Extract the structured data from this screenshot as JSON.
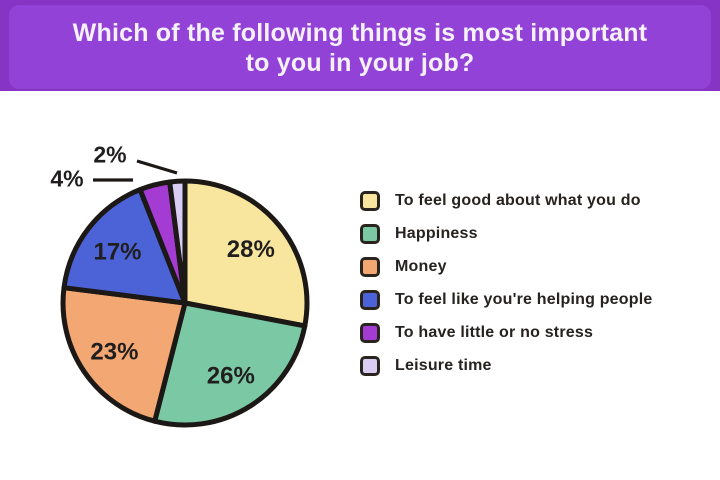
{
  "header": {
    "title": "Which of the following things is most important to you in your job?",
    "background_color": "#9342d8",
    "frame_color": "#8534c4",
    "text_color": "#f5f1fa"
  },
  "chart_data": {
    "type": "pie",
    "title": "Which of the following things is most important to you in your job?",
    "start_angle_deg": 0,
    "direction": "clockwise",
    "legend_position": "right",
    "outline_color": "#1c1816",
    "label_color": "#201e1e",
    "slices": [
      {
        "label": "To feel good about what you do",
        "value": 28,
        "pct_label": "28%",
        "color": "#f8e69e"
      },
      {
        "label": "Happiness",
        "value": 26,
        "pct_label": "26%",
        "color": "#7bc9a4"
      },
      {
        "label": "Money",
        "value": 23,
        "pct_label": "23%",
        "color": "#f3a873"
      },
      {
        "label": "To feel like you're helping people",
        "value": 17,
        "pct_label": "17%",
        "color": "#4c63d8"
      },
      {
        "label": "To have little or no stress",
        "value": 4,
        "pct_label": "4%",
        "color": "#a43bd3"
      },
      {
        "label": "Leisure time",
        "value": 2,
        "pct_label": "2%",
        "color": "#d9cdf4"
      }
    ]
  }
}
